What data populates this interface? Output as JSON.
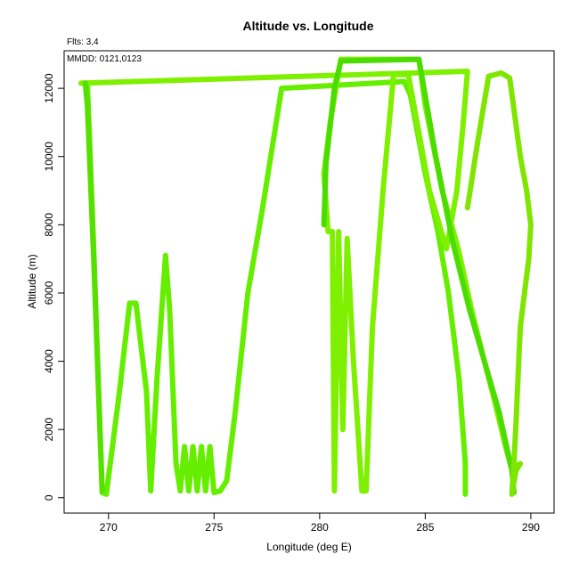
{
  "chart_data": {
    "type": "line",
    "title": "Altitude vs. Longitude",
    "annotations": {
      "flights": "Flts: 3,4",
      "dates": "MMDD: 0121,0123"
    },
    "xlabel": "Longitude (deg E)",
    "ylabel": "Altitude (m)",
    "xlim": [
      267.9,
      291.1
    ],
    "ylim": [
      -450,
      13100
    ],
    "xticks": [
      270,
      275,
      280,
      285,
      290
    ],
    "yticks": [
      0,
      2000,
      4000,
      6000,
      8000,
      10000,
      12000
    ],
    "grid": false,
    "series": [
      {
        "color": "#66ee00",
        "points": [
          [
            268.7,
            12150
          ],
          [
            269.0,
            12150
          ],
          [
            269.3,
            7300
          ],
          [
            269.7,
            150
          ],
          [
            269.9,
            100
          ],
          [
            270.0,
            600
          ],
          [
            270.5,
            3000
          ],
          [
            271.0,
            5700
          ],
          [
            271.3,
            5700
          ],
          [
            271.8,
            3100
          ],
          [
            272.0,
            200
          ],
          [
            272.3,
            3500
          ],
          [
            272.7,
            7100
          ],
          [
            272.9,
            5500
          ],
          [
            273.2,
            1000
          ],
          [
            273.4,
            200
          ],
          [
            273.6,
            1500
          ],
          [
            273.8,
            200
          ],
          [
            274.0,
            1500
          ],
          [
            274.2,
            200
          ],
          [
            274.4,
            1500
          ],
          [
            274.6,
            200
          ],
          [
            274.8,
            1500
          ],
          [
            275.0,
            150
          ],
          [
            275.3,
            200
          ],
          [
            275.6,
            500
          ],
          [
            276.0,
            2500
          ],
          [
            276.6,
            6000
          ],
          [
            277.3,
            8500
          ],
          [
            278.2,
            12000
          ],
          [
            284.0,
            12200
          ],
          [
            284.3,
            11800
          ],
          [
            285.0,
            9500
          ],
          [
            285.6,
            7800
          ],
          [
            286.1,
            6000
          ],
          [
            286.6,
            3500
          ],
          [
            286.9,
            1000
          ],
          [
            286.9,
            100
          ]
        ]
      },
      {
        "color": "#7ef000",
        "points": [
          [
            268.7,
            12150
          ],
          [
            287.0,
            12500
          ],
          [
            286.8,
            11000
          ],
          [
            286.5,
            9000
          ],
          [
            286.0,
            7300
          ],
          [
            285.2,
            9000
          ],
          [
            284.2,
            12400
          ],
          [
            283.5,
            12400
          ],
          [
            283.0,
            9000
          ],
          [
            282.5,
            5000
          ],
          [
            282.2,
            200
          ],
          [
            282.0,
            200
          ],
          [
            281.6,
            4000
          ],
          [
            281.3,
            7600
          ],
          [
            281.1,
            2000
          ],
          [
            280.9,
            7800
          ],
          [
            280.7,
            200
          ],
          [
            280.6,
            7800
          ],
          [
            280.4,
            7800
          ],
          [
            280.2,
            9500
          ],
          [
            280.5,
            11000
          ],
          [
            281.0,
            12850
          ],
          [
            284.7,
            12850
          ],
          [
            285.0,
            11500
          ],
          [
            285.8,
            9000
          ],
          [
            286.6,
            7200
          ],
          [
            287.2,
            5500
          ],
          [
            287.8,
            4000
          ],
          [
            288.3,
            2800
          ],
          [
            288.8,
            1500
          ],
          [
            289.2,
            600
          ]
        ]
      },
      {
        "color": "#4cdd00",
        "points": [
          [
            280.2,
            8000
          ],
          [
            280.3,
            9800
          ],
          [
            280.7,
            12000
          ],
          [
            281.0,
            12800
          ],
          [
            284.7,
            12850
          ],
          [
            285.5,
            10000
          ],
          [
            286.3,
            7500
          ],
          [
            287.1,
            5500
          ],
          [
            287.8,
            4000
          ],
          [
            288.5,
            2500
          ],
          [
            289.1,
            800
          ],
          [
            289.2,
            150
          ]
        ]
      },
      {
        "color": "#7ee600",
        "points": [
          [
            287.0,
            8500
          ],
          [
            287.5,
            10500
          ],
          [
            288.0,
            12350
          ],
          [
            288.6,
            12450
          ],
          [
            289.0,
            12300
          ],
          [
            289.5,
            10000
          ],
          [
            289.8,
            9000
          ],
          [
            290.0,
            8000
          ],
          [
            289.9,
            7000
          ],
          [
            289.7,
            6000
          ],
          [
            289.5,
            5000
          ],
          [
            289.4,
            3600
          ],
          [
            289.3,
            2200
          ],
          [
            289.2,
            1000
          ],
          [
            289.1,
            100
          ],
          [
            289.3,
            800
          ],
          [
            289.5,
            1000
          ],
          [
            289.2,
            900
          ]
        ]
      },
      {
        "color": "#55e000",
        "points": [
          [
            268.9,
            12150
          ],
          [
            269.0,
            11500
          ],
          [
            269.3,
            7000
          ],
          [
            269.7,
            200
          ]
        ]
      }
    ]
  }
}
